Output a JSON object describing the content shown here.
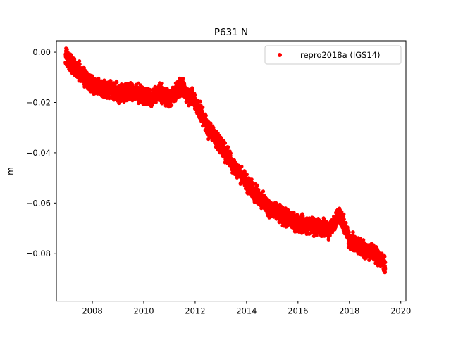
{
  "chart_data": {
    "type": "scatter",
    "title": "P631 N",
    "xlabel": "",
    "ylabel": "m",
    "xlim": [
      2006.6,
      2020.2
    ],
    "ylim": [
      -0.099,
      0.0045
    ],
    "x_ticks": [
      2008,
      2010,
      2012,
      2014,
      2016,
      2018,
      2020
    ],
    "x_tick_labels": [
      "2008",
      "2010",
      "2012",
      "2014",
      "2016",
      "2018",
      "2020"
    ],
    "y_ticks": [
      0.0,
      -0.02,
      -0.04,
      -0.06,
      -0.08
    ],
    "y_tick_labels": [
      "0.00",
      "−0.02",
      "−0.04",
      "−0.06",
      "−0.08"
    ],
    "grid": false,
    "legend_position": "top-right",
    "series": [
      {
        "name": "repro2018a (IGS14)",
        "color": "#ff0000",
        "marker": "circle",
        "trend": {
          "x": [
            2006.95,
            2007.2,
            2007.6,
            2008.0,
            2008.5,
            2009.0,
            2009.5,
            2010.0,
            2010.3,
            2010.5,
            2010.8,
            2011.0,
            2011.3,
            2011.5,
            2011.7,
            2011.9,
            2012.1,
            2012.5,
            2013.0,
            2013.5,
            2014.0,
            2014.5,
            2015.0,
            2015.5,
            2016.0,
            2016.5,
            2017.0,
            2017.2,
            2017.45,
            2017.6,
            2017.8,
            2018.0,
            2018.5,
            2019.0,
            2019.2,
            2019.4
          ],
          "y": [
            -0.001,
            -0.005,
            -0.009,
            -0.013,
            -0.015,
            -0.016,
            -0.016,
            -0.017,
            -0.019,
            -0.016,
            -0.017,
            -0.019,
            -0.015,
            -0.014,
            -0.017,
            -0.018,
            -0.022,
            -0.03,
            -0.037,
            -0.045,
            -0.052,
            -0.058,
            -0.063,
            -0.066,
            -0.068,
            -0.069,
            -0.07,
            -0.071,
            -0.067,
            -0.064,
            -0.069,
            -0.075,
            -0.078,
            -0.08,
            -0.082,
            -0.085
          ]
        }
      }
    ]
  }
}
